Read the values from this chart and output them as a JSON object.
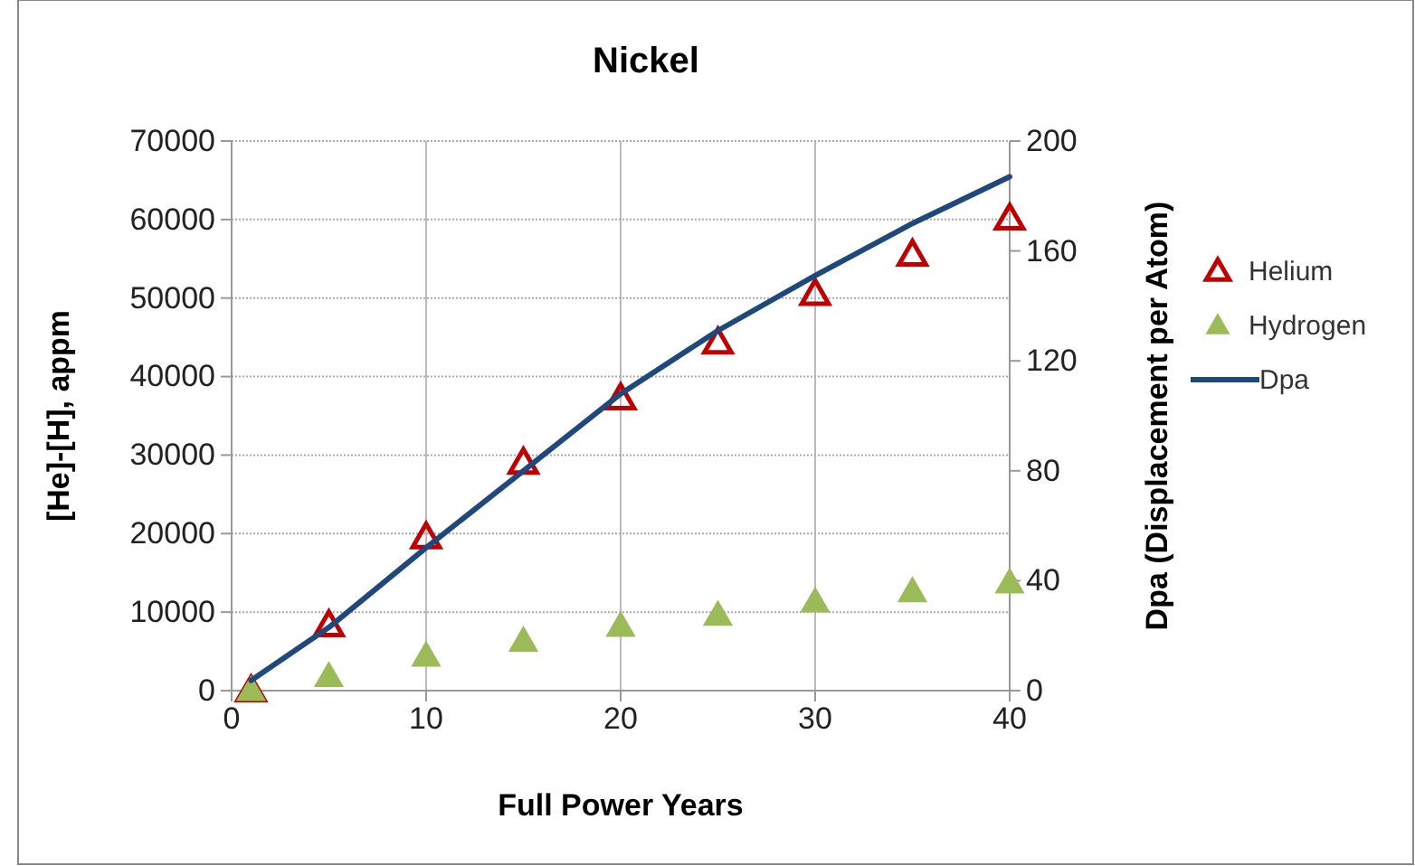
{
  "chart_data": {
    "type": "scatter",
    "title": "Nickel",
    "xlabel": "Full Power Years",
    "ylabel": "[He]-[H], appm",
    "y2label": "Dpa (Displacement per Atom)",
    "x": [
      1,
      5,
      10,
      15,
      20,
      25,
      30,
      35,
      40
    ],
    "series": [
      {
        "name": "Helium",
        "color": "#c00000",
        "marker": "triangle",
        "values": [
          0,
          8300,
          19500,
          29000,
          37200,
          44300,
          50500,
          55500,
          60100
        ]
      },
      {
        "name": "Hydrogen",
        "color": "#9bbb59",
        "marker": "triangle",
        "values": [
          0,
          1800,
          4400,
          6300,
          8200,
          9600,
          11300,
          12600,
          13700
        ]
      },
      {
        "name": "Dpa",
        "color": "#1f497d",
        "type": "line",
        "axis": "y2",
        "marker": "none",
        "values": [
          3.7,
          23,
          52,
          80,
          108,
          131,
          151,
          170,
          187
        ]
      }
    ],
    "xlim": [
      0,
      40
    ],
    "xticks": [
      0,
      10,
      20,
      30,
      40
    ],
    "ylim": [
      0,
      70000
    ],
    "yticks": [
      0,
      10000,
      20000,
      30000,
      40000,
      50000,
      60000,
      70000
    ],
    "y2lim": [
      0,
      200
    ],
    "y2ticks": [
      0,
      40,
      80,
      120,
      160,
      200
    ],
    "grid": true,
    "legend": "right"
  }
}
